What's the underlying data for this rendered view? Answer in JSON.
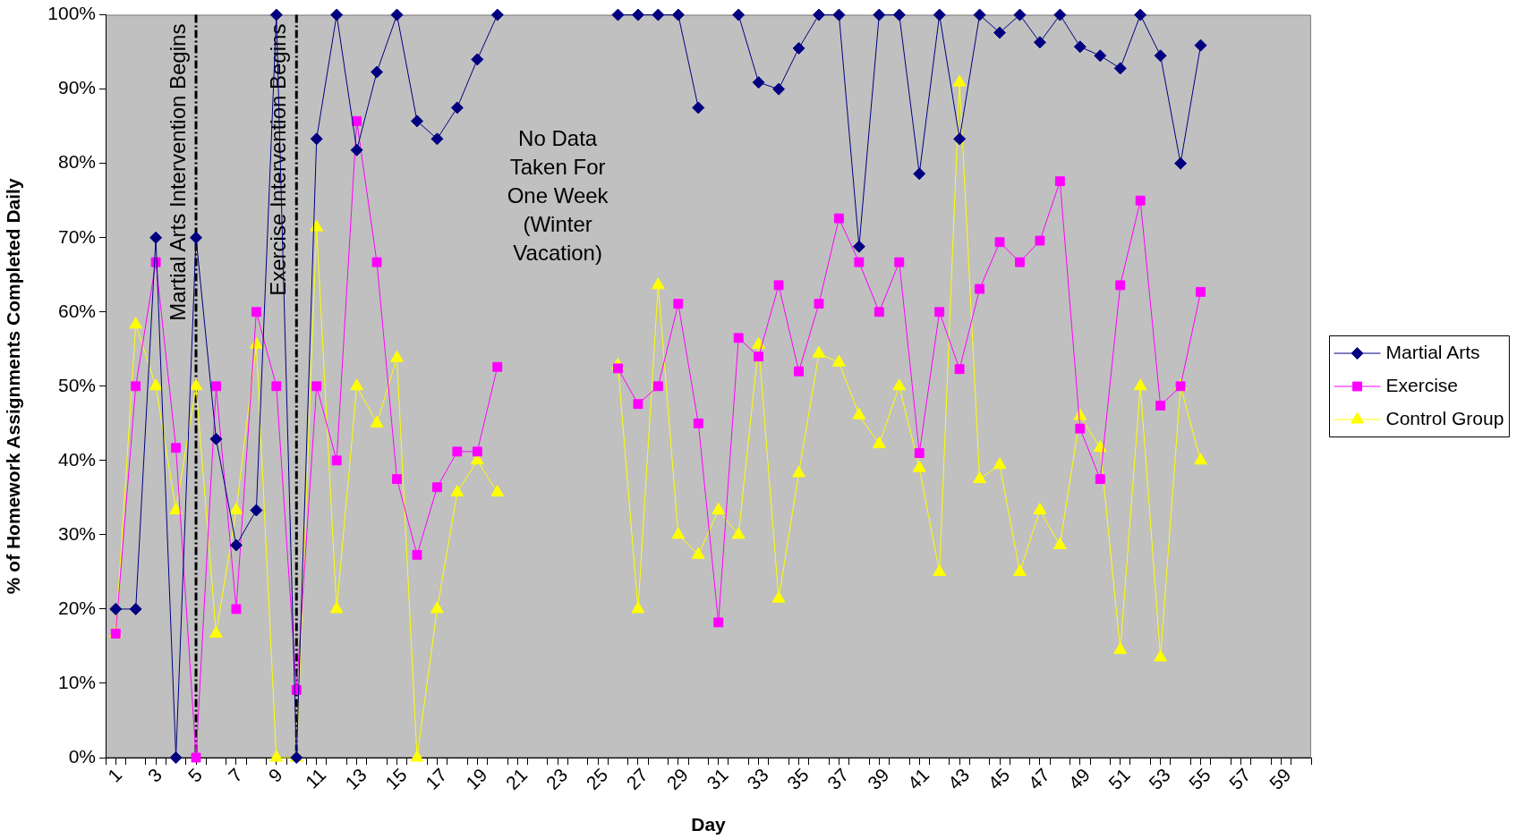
{
  "chart_data": {
    "type": "line",
    "xlabel": "Day",
    "ylabel": "% of Homework Assignments Completed Daily",
    "x": [
      1,
      2,
      3,
      4,
      5,
      6,
      7,
      8,
      9,
      10,
      11,
      12,
      13,
      14,
      15,
      16,
      17,
      18,
      19,
      20,
      21,
      22,
      23,
      24,
      25,
      26,
      27,
      28,
      29,
      30,
      31,
      32,
      33,
      34,
      35,
      36,
      37,
      38,
      39,
      40,
      41,
      42,
      43,
      44,
      45,
      46,
      47,
      48,
      49,
      50,
      51,
      52,
      53,
      54,
      55
    ],
    "xlim": [
      0.5,
      60.5
    ],
    "xticks": [
      {
        "value": 0.5,
        "label": null
      },
      1,
      {
        "value": 1.5,
        "label": null
      },
      {
        "value": 2.5,
        "label": null
      },
      3,
      {
        "value": 3.5,
        "label": null
      },
      {
        "value": 4.5,
        "label": null
      },
      5,
      {
        "value": 5.5,
        "label": null
      },
      {
        "value": 6.5,
        "label": null
      },
      7,
      {
        "value": 7.5,
        "label": null
      },
      {
        "value": 8.5,
        "label": null
      },
      9,
      {
        "value": 9.5,
        "label": null
      },
      {
        "value": 10.5,
        "label": null
      },
      11,
      {
        "value": 11.5,
        "label": null
      },
      {
        "value": 12.5,
        "label": null
      },
      13,
      {
        "value": 13.5,
        "label": null
      },
      {
        "value": 14.5,
        "label": null
      },
      15,
      {
        "value": 15.5,
        "label": null
      },
      {
        "value": 16.5,
        "label": null
      },
      17,
      {
        "value": 17.5,
        "label": null
      },
      {
        "value": 18.5,
        "label": null
      },
      19,
      {
        "value": 19.5,
        "label": null
      },
      {
        "value": 20.5,
        "label": null
      },
      21,
      {
        "value": 21.5,
        "label": null
      },
      {
        "value": 22.5,
        "label": null
      },
      23,
      {
        "value": 23.5,
        "label": null
      },
      {
        "value": 24.5,
        "label": null
      },
      25,
      {
        "value": 25.5,
        "label": null
      },
      {
        "value": 26.5,
        "label": null
      },
      27,
      {
        "value": 27.5,
        "label": null
      },
      {
        "value": 28.5,
        "label": null
      },
      29,
      {
        "value": 29.5,
        "label": null
      },
      {
        "value": 30.5,
        "label": null
      },
      31,
      {
        "value": 31.5,
        "label": null
      },
      {
        "value": 32.5,
        "label": null
      },
      33,
      {
        "value": 33.5,
        "label": null
      },
      {
        "value": 34.5,
        "label": null
      },
      35,
      {
        "value": 35.5,
        "label": null
      },
      {
        "value": 36.5,
        "label": null
      },
      37,
      {
        "value": 37.5,
        "label": null
      },
      {
        "value": 38.5,
        "label": null
      },
      39,
      {
        "value": 39.5,
        "label": null
      },
      {
        "value": 40.5,
        "label": null
      },
      41,
      {
        "value": 41.5,
        "label": null
      },
      {
        "value": 42.5,
        "label": null
      },
      43,
      {
        "value": 43.5,
        "label": null
      },
      {
        "value": 44.5,
        "label": null
      },
      45,
      {
        "value": 45.5,
        "label": null
      },
      {
        "value": 46.5,
        "label": null
      },
      47,
      {
        "value": 47.5,
        "label": null
      },
      {
        "value": 48.5,
        "label": null
      },
      49,
      {
        "value": 49.5,
        "label": null
      },
      {
        "value": 50.5,
        "label": null
      },
      51,
      {
        "value": 51.5,
        "label": null
      },
      {
        "value": 52.5,
        "label": null
      },
      53,
      {
        "value": 53.5,
        "label": null
      },
      {
        "value": 54.5,
        "label": null
      },
      55,
      {
        "value": 55.5,
        "label": null
      },
      {
        "value": 56.5,
        "label": null
      },
      57,
      {
        "value": 57.5,
        "label": null
      },
      {
        "value": 58.5,
        "label": null
      },
      59,
      {
        "value": 59.5,
        "label": null
      },
      {
        "value": 60.5,
        "label": null
      }
    ],
    "ylim": [
      0,
      100
    ],
    "yticks": [
      {
        "value": 0,
        "label": "0%"
      },
      {
        "value": 10,
        "label": "10%"
      },
      {
        "value": 20,
        "label": "20%"
      },
      {
        "value": 30,
        "label": "30%"
      },
      {
        "value": 40,
        "label": "40%"
      },
      {
        "value": 50,
        "label": "50%"
      },
      {
        "value": 60,
        "label": "60%"
      },
      {
        "value": 70,
        "label": "70%"
      },
      {
        "value": 80,
        "label": "80%"
      },
      {
        "value": 90,
        "label": "90%"
      },
      {
        "value": 100,
        "label": "100%"
      }
    ],
    "series": [
      {
        "name": "Martial Arts",
        "color": "#000080",
        "marker": "diamond",
        "values": [
          20,
          20,
          70,
          0,
          70,
          42.9,
          28.6,
          33.3,
          100,
          0,
          83.3,
          100,
          81.8,
          92.3,
          100,
          85.7,
          83.3,
          87.5,
          94,
          100,
          null,
          null,
          null,
          null,
          null,
          100,
          100,
          100,
          100,
          87.5,
          null,
          100,
          90.9,
          90,
          95.5,
          100,
          100,
          68.8,
          100,
          100,
          78.6,
          100,
          83.3,
          100,
          97.6,
          100,
          96.3,
          100,
          95.7,
          94.5,
          92.8,
          100,
          94.5,
          80,
          95.9
        ]
      },
      {
        "name": "Exercise",
        "color": "#ff00ff",
        "marker": "square",
        "values": [
          16.7,
          50,
          66.7,
          41.7,
          0,
          50,
          20,
          60,
          50,
          9.1,
          50,
          40,
          85.7,
          66.7,
          37.5,
          27.3,
          36.4,
          41.2,
          41.2,
          52.6,
          null,
          null,
          null,
          null,
          null,
          52.4,
          47.6,
          50,
          61.1,
          45,
          18.2,
          56.5,
          54,
          63.6,
          52,
          61.1,
          72.6,
          66.7,
          60,
          66.7,
          41,
          60,
          52.3,
          63.1,
          69.4,
          66.7,
          69.6,
          77.6,
          44.3,
          37.5,
          63.6,
          75,
          47.4,
          50,
          62.7
        ]
      },
      {
        "name": "Control Group",
        "color": "#ffff00",
        "marker": "triangle",
        "values": [
          16.7,
          58.3,
          50,
          33.3,
          50,
          16.7,
          33.3,
          55.6,
          0,
          0,
          71.4,
          20,
          50,
          45,
          53.8,
          0,
          20,
          35.7,
          40,
          35.7,
          null,
          null,
          null,
          null,
          null,
          52.8,
          20,
          63.6,
          30,
          27.3,
          33.3,
          30,
          55.6,
          21.4,
          38.3,
          54.4,
          53.2,
          46.1,
          42.2,
          50,
          39,
          25,
          90.9,
          37.5,
          39.4,
          25,
          33.3,
          28.6,
          46,
          41.7,
          14.5,
          50,
          13.5,
          50,
          40
        ]
      }
    ],
    "ref_lines": [
      {
        "axis": "x",
        "value": 5,
        "label": "Martial Arts Intervention Begins",
        "color": "#000000",
        "line_style": "dashed"
      },
      {
        "axis": "x",
        "value": 10,
        "label": "Exercise Intervention Begins",
        "color": "#000000",
        "line_style": "dashed"
      }
    ],
    "annotations": [
      "No Data Taken For One Week (Winter Vacation)"
    ],
    "legend": "right",
    "grid": false
  }
}
